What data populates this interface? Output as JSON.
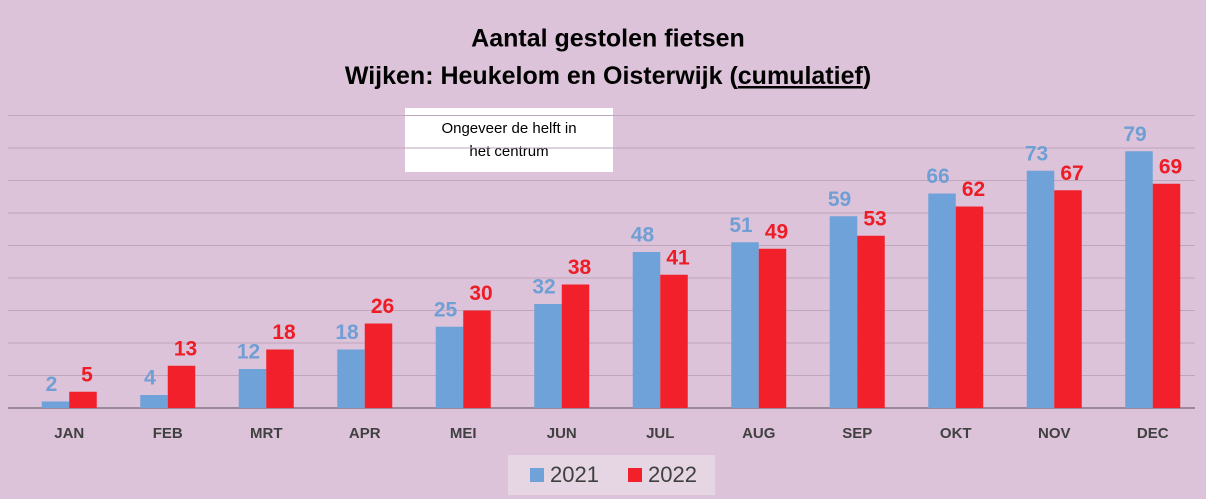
{
  "chart_data": {
    "type": "bar",
    "title": "Aantal gestolen fietsen",
    "subtitle": [
      "Wijken: Heukelom en Oisterwijk (",
      "cumulatief",
      ")"
    ],
    "annotation": [
      "Ongeveer de helft in",
      "het centrum"
    ],
    "categories": [
      "JAN",
      "FEB",
      "MRT",
      "APR",
      "MEI",
      "JUN",
      "JUL",
      "AUG",
      "SEP",
      "OKT",
      "NOV",
      "DEC"
    ],
    "series": [
      {
        "name": "2021",
        "color": "#6fa2d8",
        "label_color": "#6f9fd4",
        "values": [
          2,
          4,
          12,
          18,
          25,
          32,
          48,
          51,
          59,
          66,
          73,
          79
        ]
      },
      {
        "name": "2022",
        "color": "#f2202b",
        "label_color": "#ee1c25",
        "values": [
          5,
          13,
          18,
          26,
          30,
          38,
          41,
          49,
          53,
          62,
          67,
          69
        ]
      }
    ],
    "ylim": [
      0,
      90
    ],
    "yticks": [
      0,
      10,
      20,
      30,
      40,
      50,
      60,
      70,
      80,
      90
    ],
    "grid": true,
    "legend": "bottom"
  }
}
